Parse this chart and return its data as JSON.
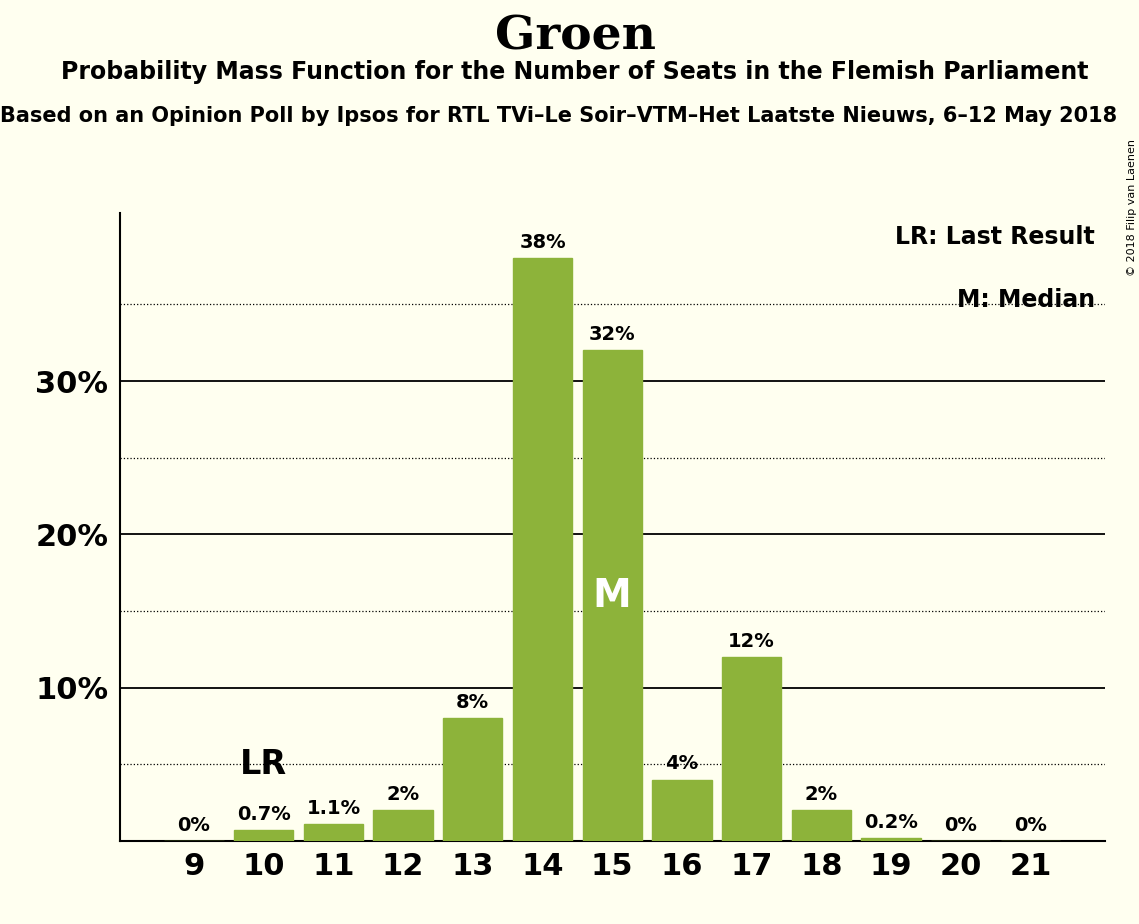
{
  "title": "Groen",
  "subtitle": "Probability Mass Function for the Number of Seats in the Flemish Parliament",
  "source_line": "Based on an Opinion Poll by Ipsos for RTL TVi–Le Soir–VTM–Het Laatste Nieuws, 6–12 May 2018",
  "copyright": "© 2018 Filip van Laenen",
  "categories": [
    9,
    10,
    11,
    12,
    13,
    14,
    15,
    16,
    17,
    18,
    19,
    20,
    21
  ],
  "values": [
    0.0,
    0.7,
    1.1,
    2.0,
    8.0,
    38.0,
    32.0,
    4.0,
    12.0,
    2.0,
    0.2,
    0.0,
    0.0
  ],
  "bar_color": "#8db33a",
  "background_color": "#fffff0",
  "last_result_seat": 10,
  "median_seat": 15,
  "yticks": [
    10,
    20,
    30
  ],
  "dotted_yticks": [
    5,
    15,
    25,
    35
  ],
  "bar_labels": [
    "0%",
    "0.7%",
    "1.1%",
    "2%",
    "8%",
    "38%",
    "32%",
    "4%",
    "12%",
    "2%",
    "0.2%",
    "0%",
    "0%"
  ],
  "ylim": [
    0,
    41
  ],
  "LR_label": "LR",
  "M_label": "M",
  "legend_LR": "LR: Last Result",
  "legend_M": "M: Median",
  "title_fontsize": 34,
  "subtitle_fontsize": 17,
  "source_fontsize": 15,
  "tick_fontsize": 22,
  "bar_label_fontsize": 14,
  "legend_fontsize": 17,
  "LR_fontsize": 24,
  "M_fontsize": 28
}
